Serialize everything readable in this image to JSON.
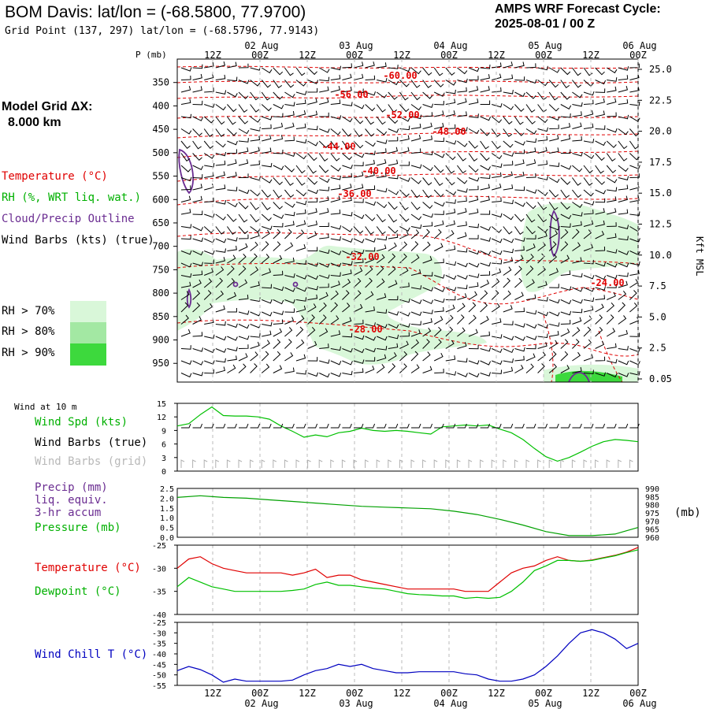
{
  "header": {
    "title": "BOM Davis:  lat/lon = (-68.5800, 77.9700)",
    "grid_point": "Grid Point (137, 297) lat/lon = (-68.5796, 77.9143)",
    "cycle_line1": "AMPS WRF Forecast Cycle:",
    "cycle_line2": "2025-08-01 / 00  Z",
    "model_grid_label": "Model Grid ΔX:",
    "model_grid_value": "8.000 km"
  },
  "legend_top": {
    "temperature": "Temperature (°C)",
    "rh": "RH (%, WRT liq. wat.)",
    "cloud": "Cloud/Precip Outline",
    "wind": "Wind Barbs (kts) (true)",
    "rh_levels": [
      {
        "label": "RH > 70%",
        "color": "#d9f7d9"
      },
      {
        "label": "RH > 80%",
        "color": "#a3e8a3"
      },
      {
        "label": "RH > 90%",
        "color": "#3dd93d"
      }
    ]
  },
  "legend_wind": {
    "wind_at": "Wind at 10 m",
    "spd": "Wind Spd (kts)",
    "barbs_true": "Wind Barbs (true)",
    "barbs_grid": "Wind Barbs (grid)"
  },
  "legend_precip": {
    "precip": "Precip (mm)",
    "liq": "liq. equiv.",
    "accum": "3-hr accum",
    "pressure": "Pressure (mb)",
    "mb_unit": "(mb)"
  },
  "legend_temp": {
    "temp": "Temperature (°C)",
    "dew": "Dewpoint (°C)"
  },
  "legend_chill": {
    "chill": "Wind Chill T (°C)"
  },
  "colors": {
    "temperature": "#e00000",
    "dewpoint": "#00c000",
    "windspeed": "#00c000",
    "pressure": "#00a000",
    "windchill": "#0000c0",
    "cloud": "#6a2c91",
    "grid_barb": "#b0b0b0"
  },
  "chart_data": {
    "type": "line",
    "time_axis": {
      "top_hour_labels": [
        "12Z",
        "00Z",
        "12Z",
        "00Z",
        "12Z",
        "00Z",
        "12Z",
        "00Z",
        "12Z",
        "00Z"
      ],
      "top_date_labels": [
        "02 Aug",
        "03 Aug",
        "04 Aug",
        "05 Aug",
        "06 Aug"
      ],
      "bottom_hour_labels": [
        "12Z",
        "00Z",
        "12Z",
        "00Z",
        "12Z",
        "00Z",
        "12Z",
        "00Z",
        "12Z",
        "00Z"
      ],
      "bottom_date_labels": [
        "02 Aug",
        "03 Aug",
        "04 Aug",
        "05 Aug",
        "06 Aug"
      ],
      "range_hours": [
        0,
        120
      ],
      "step_hours": 3
    },
    "cross_section": {
      "pressure_label": "P (mb)",
      "pressure_ticks": [
        350,
        400,
        450,
        500,
        550,
        600,
        650,
        700,
        750,
        800,
        850,
        900,
        950
      ],
      "pressure_range": [
        300,
        990
      ],
      "height_label": "Kft MSL",
      "height_ticks": [
        "25.0",
        "22.5",
        "20.0",
        "17.5",
        "15.0",
        "12.5",
        "10.0",
        "7.5",
        "5.0",
        "2.5",
        "0.05"
      ],
      "temperature_contour_labels": [
        "-60.00",
        "-56.00",
        "-52.00",
        "-48.00",
        "-44.00",
        "-40.00",
        "-36.00",
        "-32.00",
        "-28.00",
        "-24.00"
      ]
    },
    "panels": [
      {
        "name": "wind",
        "ylim": [
          0,
          15
        ],
        "yticks": [
          0,
          3,
          6,
          9,
          12,
          15
        ],
        "series": [
          {
            "name": "Wind Spd (kts)",
            "x": [
              0,
              3,
              6,
              9,
              12,
              15,
              18,
              21,
              24,
              27,
              30,
              33,
              36,
              39,
              42,
              45,
              48,
              51,
              54,
              57,
              60,
              63,
              66,
              69,
              72,
              75,
              78,
              81,
              84,
              87,
              90,
              93,
              96,
              99,
              102,
              105,
              108,
              111,
              114,
              117,
              120
            ],
            "values": [
              10,
              10.5,
              12.5,
              14.2,
              12.3,
              12.2,
              12.2,
              12,
              11.5,
              10,
              8.8,
              7.5,
              8,
              7.6,
              8.5,
              8.8,
              9.5,
              9,
              8.8,
              9,
              8.8,
              8.5,
              8.2,
              9.8,
              10,
              10.2,
              10,
              10.2,
              9.3,
              8.5,
              7,
              5,
              3.2,
              2.2,
              3,
              4.2,
              5.5,
              6.5,
              7,
              6.8,
              6.5
            ]
          }
        ]
      },
      {
        "name": "precip-pressure",
        "ylim_left": [
          0,
          2.5
        ],
        "yticks_left": [
          "0.0",
          "0.5",
          "1.0",
          "1.5",
          "2.0",
          "2.5"
        ],
        "ylim_right": [
          960,
          990
        ],
        "yticks_right": [
          "960",
          "965",
          "970",
          "975",
          "980",
          "985",
          "990"
        ],
        "series": [
          {
            "name": "Pressure (mb)",
            "x": [
              0,
              6,
              12,
              18,
              24,
              30,
              36,
              42,
              48,
              54,
              60,
              66,
              72,
              78,
              84,
              90,
              96,
              102,
              108,
              114,
              117,
              120
            ],
            "values": [
              984.5,
              985.5,
              984.5,
              984,
              983,
              982,
              981,
              980,
              979,
              978.5,
              978,
              977.5,
              976,
              974,
              971,
              967.5,
              963.5,
              961,
              961,
              962,
              964,
              966
            ]
          }
        ]
      },
      {
        "name": "temperature",
        "ylim": [
          -40,
          -25
        ],
        "yticks": [
          -40,
          -35,
          -30,
          -25
        ],
        "series": [
          {
            "name": "Temperature (°C)",
            "x": [
              0,
              3,
              6,
              9,
              12,
              15,
              18,
              21,
              24,
              27,
              30,
              33,
              36,
              39,
              42,
              45,
              48,
              51,
              54,
              57,
              60,
              63,
              66,
              69,
              72,
              75,
              78,
              81,
              84,
              87,
              90,
              93,
              96,
              99,
              102,
              105,
              108,
              111,
              114,
              117,
              120
            ],
            "values": [
              -30,
              -28,
              -27.5,
              -29,
              -30,
              -30.5,
              -31,
              -31,
              -31,
              -31,
              -31.5,
              -31,
              -30.2,
              -32,
              -31.5,
              -31.5,
              -32.5,
              -33,
              -33.5,
              -34,
              -34.5,
              -34.5,
              -34.5,
              -34.5,
              -34.5,
              -35,
              -35,
              -35,
              -33,
              -31,
              -30,
              -29.5,
              -28.3,
              -27.5,
              -28.3,
              -28.5,
              -28.2,
              -27.7,
              -27.2,
              -26.5,
              -25.5
            ]
          },
          {
            "name": "Dewpoint (°C)",
            "x": [
              0,
              3,
              6,
              9,
              12,
              15,
              18,
              21,
              24,
              27,
              30,
              33,
              36,
              39,
              42,
              45,
              48,
              51,
              54,
              57,
              60,
              63,
              66,
              69,
              72,
              75,
              78,
              81,
              84,
              87,
              90,
              93,
              96,
              99,
              102,
              105,
              108,
              111,
              114,
              117,
              120
            ],
            "values": [
              -34,
              -32,
              -33,
              -34,
              -34.5,
              -35,
              -35,
              -35,
              -35,
              -35,
              -34.8,
              -34.5,
              -33.5,
              -33,
              -33.7,
              -33.7,
              -34,
              -34.3,
              -34.5,
              -35,
              -35.5,
              -35.7,
              -35.8,
              -36,
              -36,
              -36.5,
              -36.3,
              -36.5,
              -36.3,
              -35,
              -33,
              -30.5,
              -29.5,
              -28.3,
              -28.3,
              -28.5,
              -28.3,
              -27.8,
              -27.3,
              -26.6,
              -26
            ]
          }
        ]
      },
      {
        "name": "windchill",
        "ylim": [
          -55,
          -25
        ],
        "yticks": [
          -55,
          -50,
          -45,
          -40,
          -35,
          -30,
          -25
        ],
        "series": [
          {
            "name": "Wind Chill T (°C)",
            "x": [
              0,
              3,
              6,
              9,
              12,
              15,
              18,
              21,
              24,
              27,
              30,
              33,
              36,
              39,
              42,
              45,
              48,
              51,
              54,
              57,
              60,
              63,
              66,
              69,
              72,
              75,
              78,
              81,
              84,
              87,
              90,
              93,
              96,
              99,
              102,
              105,
              108,
              111,
              114,
              117,
              120
            ],
            "values": [
              -48,
              -46,
              -47.5,
              -50,
              -53.5,
              -52,
              -53,
              -53,
              -53,
              -53,
              -52.5,
              -50,
              -48,
              -47,
              -45,
              -46,
              -45,
              -47,
              -48,
              -49,
              -49,
              -48.5,
              -48.5,
              -48.5,
              -48.5,
              -49.5,
              -50,
              -52,
              -53,
              -53,
              -52,
              -50,
              -46,
              -41,
              -35,
              -30,
              -28.5,
              -30,
              -33,
              -37.5,
              -35
            ]
          }
        ]
      }
    ]
  }
}
